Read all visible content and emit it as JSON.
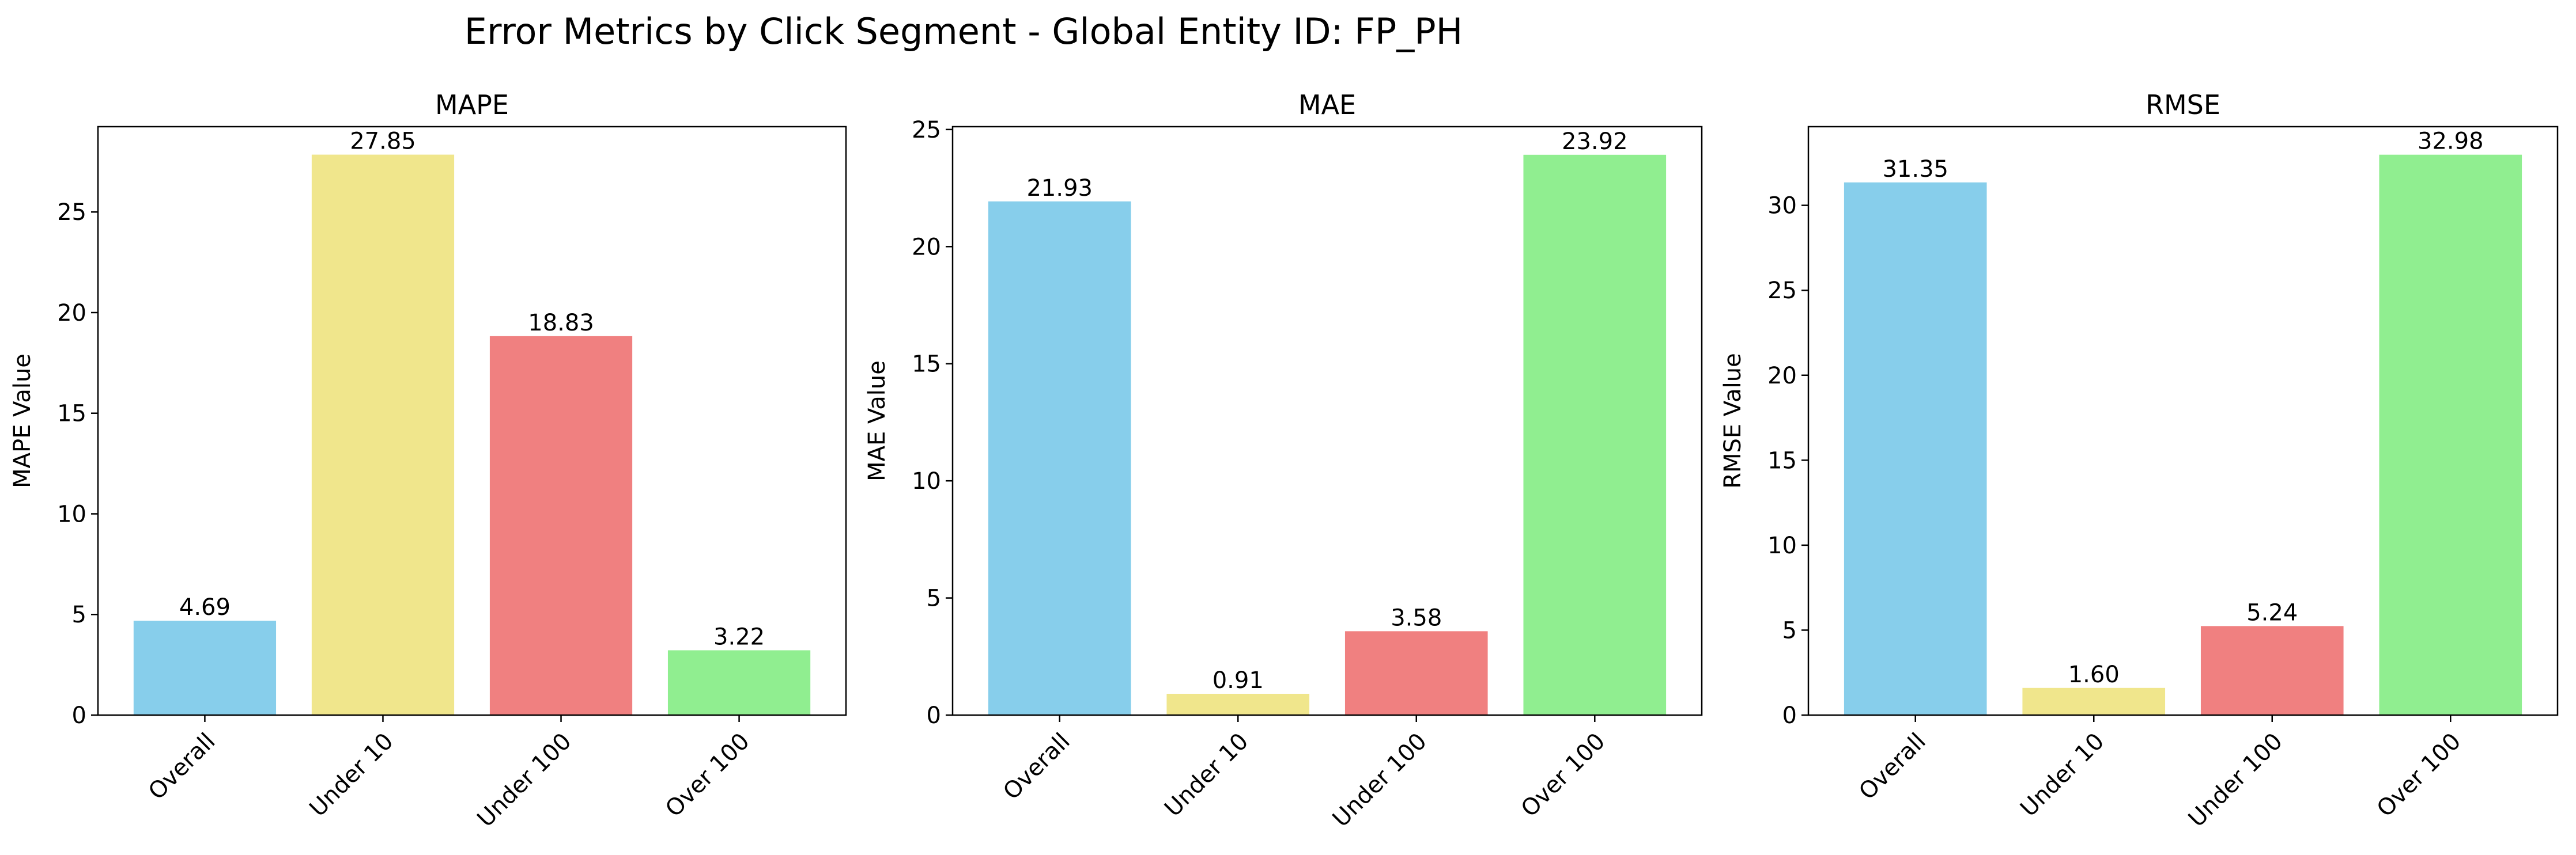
{
  "figure_title": "Error Metrics by Click Segment - Global Entity ID: FP_PH",
  "chart_data": [
    {
      "type": "bar",
      "title": "MAPE",
      "xlabel": "",
      "ylabel": "MAPE Value",
      "categories": [
        "Overall",
        "Under 10",
        "Under 100",
        "Over 100"
      ],
      "values": [
        4.69,
        27.85,
        18.83,
        3.22
      ],
      "value_labels": [
        "4.69",
        "27.85",
        "18.83",
        "3.22"
      ],
      "colors": [
        "#87CEEB",
        "#F0E68C",
        "#F08080",
        "#90EE90"
      ],
      "ylim": [
        0,
        29.24
      ],
      "yticks": [
        0,
        5,
        10,
        15,
        20,
        25
      ],
      "grid": false
    },
    {
      "type": "bar",
      "title": "MAE",
      "xlabel": "",
      "ylabel": "MAE Value",
      "categories": [
        "Overall",
        "Under 10",
        "Under 100",
        "Over 100"
      ],
      "values": [
        21.93,
        0.91,
        3.58,
        23.92
      ],
      "value_labels": [
        "21.93",
        "0.91",
        "3.58",
        "23.92"
      ],
      "colors": [
        "#87CEEB",
        "#F0E68C",
        "#F08080",
        "#90EE90"
      ],
      "ylim": [
        0,
        25.12
      ],
      "yticks": [
        0,
        5,
        10,
        15,
        20,
        25
      ],
      "grid": false
    },
    {
      "type": "bar",
      "title": "RMSE",
      "xlabel": "",
      "ylabel": "RMSE Value",
      "categories": [
        "Overall",
        "Under 10",
        "Under 100",
        "Over 100"
      ],
      "values": [
        31.35,
        1.6,
        5.24,
        32.98
      ],
      "value_labels": [
        "31.35",
        "1.60",
        "5.24",
        "32.98"
      ],
      "colors": [
        "#87CEEB",
        "#F0E68C",
        "#F08080",
        "#90EE90"
      ],
      "ylim": [
        0,
        34.63
      ],
      "yticks": [
        0,
        5,
        10,
        15,
        20,
        25,
        30
      ],
      "grid": false
    }
  ]
}
